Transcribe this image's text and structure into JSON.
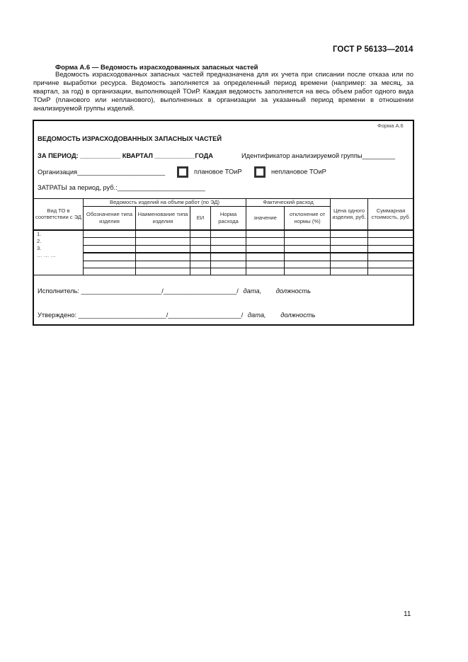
{
  "header": {
    "standard": "ГОСТ Р 56133—2014"
  },
  "form_title": "Форма А.6 — Ведомость израсходованных запасных частей",
  "intro": "Ведомость израсходованных запасных частей предназначена для их учета при списании после отказа или по причине выработки ресурса. Ведомость заполняется за определенный период времени (например: за месяц, за квартал, за год) в организации, выполняющей ТОиР. Каждая ведомость заполняется на весь объем работ одного вида ТОиР (планового или непланового), выполненных в организации за указанный период времени в отношении анализируемой группы изделий.",
  "form": {
    "label": "Форма А.6",
    "title": "ВЕДОМОСТЬ ИЗРАСХОДОВАННЫХ ЗАПАСНЫХ ЧАСТЕЙ",
    "period": "ЗА ПЕРИОД: ___________ КВАРТАЛ ___________ГОДА",
    "group_id": "Идентификатор анализируемой группы_________",
    "org": "Организация________________________",
    "planned": "плановое ТОиР",
    "unplanned": "неплановое ТОиР",
    "costs": "ЗАТРАТЫ за период, руб.:________________________",
    "table": {
      "col_type": "Вид ТО в соответствии с ЭД",
      "group1": "Ведомость изделий на объем работ (по ЭД)",
      "designation": "Обозначение типа изделия",
      "name": "Наименование типа изделия",
      "unit": "ЕИ",
      "norm": "Норма расхода",
      "group2": "Фактический расход",
      "value": "значение",
      "deviation": "отклонение от нормы (%)",
      "price": "Цена одного изделия, руб.",
      "total": "Суммарная стоимость, руб.",
      "rows": [
        "1.",
        "2.",
        "3.",
        "… … …"
      ]
    },
    "executor": "Исполнитель: ______________________/____________________/",
    "approved": "Утверждено: ________________________/____________________/",
    "date": "дата,",
    "position": "должность"
  },
  "page_number": "11"
}
